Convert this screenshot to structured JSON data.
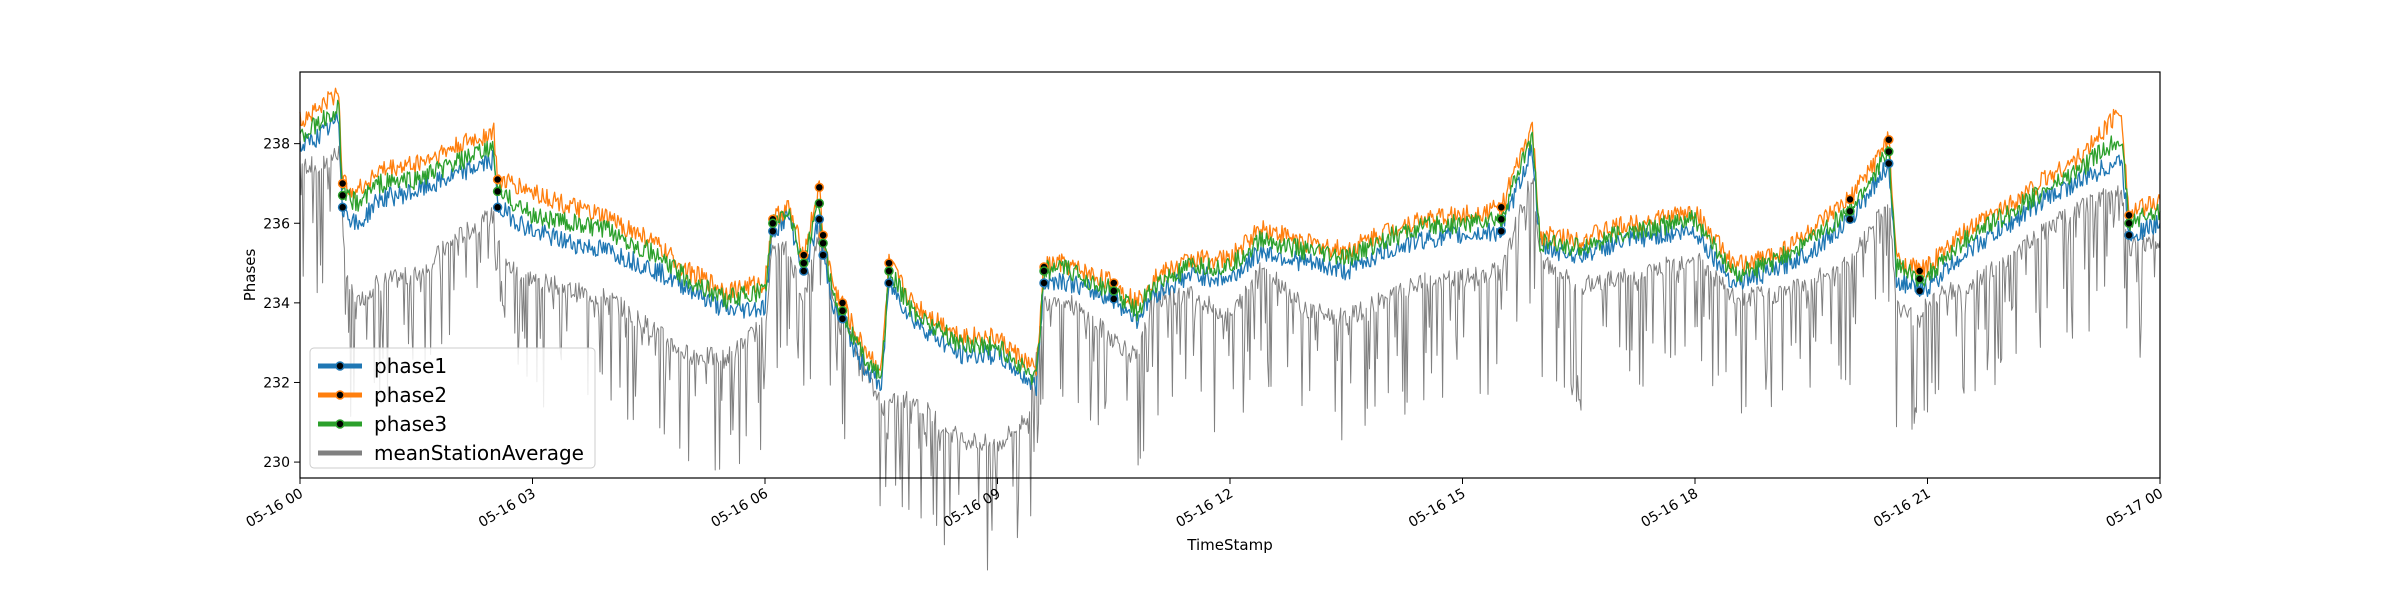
{
  "chart_data": {
    "type": "line",
    "title": "",
    "xlabel": "TimeStamp",
    "ylabel": "Phases",
    "x_ticks": [
      "05-16 00",
      "05-16 03",
      "05-16 06",
      "05-16 09",
      "05-16 12",
      "05-16 15",
      "05-16 18",
      "05-16 21",
      "05-17 00"
    ],
    "x_tick_hours": [
      0,
      3,
      6,
      9,
      12,
      15,
      18,
      21,
      24
    ],
    "xlim_hours": [
      0,
      24
    ],
    "y_ticks": [
      "230",
      "232",
      "234",
      "236",
      "238"
    ],
    "y_tick_values": [
      230,
      232,
      234,
      236,
      238
    ],
    "ylim": [
      229.6,
      239.8
    ],
    "grid": false,
    "legend_position": "lower-left",
    "series": [
      {
        "name": "phase1",
        "color": "#1f77b4",
        "marker": "dot",
        "x_hours": [
          0,
          0.25,
          0.5,
          0.55,
          0.75,
          1,
          1.5,
          2,
          2.5,
          2.55,
          3,
          3.5,
          4,
          4.5,
          5,
          5.5,
          6,
          6.1,
          6.3,
          6.5,
          6.7,
          6.75,
          6.9,
          7,
          7.2,
          7.5,
          7.6,
          7.9,
          8.5,
          9,
          9.5,
          9.6,
          9.8,
          10.5,
          10.8,
          11,
          11.5,
          12,
          12.4,
          13,
          13.5,
          14,
          14.5,
          15,
          15.5,
          15.9,
          16,
          16.5,
          17,
          17.5,
          18,
          18.5,
          19,
          19.5,
          20,
          20.5,
          20.6,
          20.9,
          21,
          21.5,
          22,
          22.5,
          23,
          23.5,
          23.6,
          24
        ],
        "y": [
          237.9,
          238.2,
          238.6,
          236.4,
          235.9,
          236.6,
          236.8,
          237.2,
          237.6,
          236.4,
          235.8,
          235.5,
          235.3,
          234.9,
          234.4,
          233.8,
          233.9,
          235.8,
          236.2,
          234.8,
          236.1,
          235.2,
          233.8,
          233.6,
          232.6,
          231.9,
          234.5,
          233.6,
          232.7,
          232.7,
          231.9,
          234.5,
          234.6,
          234.1,
          233.6,
          234.2,
          234.7,
          234.6,
          235.3,
          235.0,
          234.8,
          235.3,
          235.6,
          235.7,
          235.8,
          237.9,
          235.4,
          235.2,
          235.5,
          235.7,
          235.8,
          234.5,
          234.8,
          235.3,
          236.1,
          237.5,
          234.6,
          234.3,
          234.4,
          235.3,
          235.9,
          236.6,
          237.1,
          237.6,
          235.7,
          236.0
        ]
      },
      {
        "name": "phase2",
        "color": "#ff7f0e",
        "marker": "dot",
        "x_hours": [
          0,
          0.25,
          0.5,
          0.55,
          0.75,
          1,
          1.5,
          2,
          2.5,
          2.55,
          3,
          3.5,
          4,
          4.5,
          5,
          5.5,
          6,
          6.1,
          6.3,
          6.5,
          6.7,
          6.75,
          6.9,
          7,
          7.2,
          7.5,
          7.6,
          7.9,
          8.5,
          9,
          9.5,
          9.6,
          9.8,
          10.5,
          10.8,
          11,
          11.5,
          12,
          12.4,
          13,
          13.5,
          14,
          14.5,
          15,
          15.5,
          15.9,
          16,
          16.5,
          17,
          17.5,
          18,
          18.5,
          19,
          19.5,
          20,
          20.5,
          20.6,
          20.9,
          21,
          21.5,
          22,
          22.5,
          23,
          23.5,
          23.6,
          24
        ],
        "y": [
          238.6,
          238.9,
          239.3,
          237.0,
          236.8,
          237.3,
          237.5,
          237.9,
          238.3,
          237.1,
          236.8,
          236.4,
          236.1,
          235.6,
          234.8,
          234.3,
          234.5,
          236.1,
          236.4,
          235.2,
          236.9,
          235.7,
          234.3,
          234.0,
          233.1,
          232.3,
          235.0,
          234.0,
          233.2,
          233.1,
          232.3,
          234.9,
          235.0,
          234.5,
          234.0,
          234.6,
          235.1,
          235.1,
          235.9,
          235.5,
          235.3,
          235.8,
          236.1,
          236.2,
          236.4,
          238.4,
          235.7,
          235.6,
          235.9,
          236.1,
          236.3,
          234.9,
          235.2,
          235.8,
          236.6,
          238.1,
          235.1,
          234.8,
          234.9,
          235.8,
          236.4,
          237.1,
          237.7,
          238.9,
          236.2,
          236.6
        ]
      },
      {
        "name": "phase3",
        "color": "#2ca02c",
        "marker": "dot",
        "x_hours": [
          0,
          0.25,
          0.5,
          0.55,
          0.75,
          1,
          1.5,
          2,
          2.5,
          2.55,
          3,
          3.5,
          4,
          4.5,
          5,
          5.5,
          6,
          6.1,
          6.3,
          6.5,
          6.7,
          6.75,
          6.9,
          7,
          7.2,
          7.5,
          7.6,
          7.9,
          8.5,
          9,
          9.5,
          9.6,
          9.8,
          10.5,
          10.8,
          11,
          11.5,
          12,
          12.4,
          13,
          13.5,
          14,
          14.5,
          15,
          15.5,
          15.9,
          16,
          16.5,
          17,
          17.5,
          18,
          18.5,
          19,
          19.5,
          20,
          20.5,
          20.6,
          20.9,
          21,
          21.5,
          22,
          22.5,
          23,
          23.5,
          23.6,
          24
        ],
        "y": [
          238.2,
          238.5,
          238.9,
          236.7,
          236.5,
          237.0,
          237.1,
          237.5,
          237.9,
          236.8,
          236.2,
          236.0,
          235.8,
          235.3,
          234.6,
          234.1,
          234.3,
          236.0,
          236.3,
          235.0,
          236.5,
          235.5,
          234.1,
          233.8,
          232.9,
          232.1,
          234.8,
          233.8,
          233.0,
          232.9,
          232.1,
          234.8,
          234.9,
          234.3,
          233.8,
          234.4,
          234.9,
          234.9,
          235.6,
          235.3,
          235.1,
          235.6,
          235.9,
          236.0,
          236.1,
          238.2,
          235.5,
          235.4,
          235.7,
          235.9,
          236.1,
          234.7,
          235.0,
          235.6,
          236.3,
          237.8,
          234.9,
          234.6,
          234.7,
          235.6,
          236.2,
          236.8,
          237.4,
          238.2,
          236.0,
          236.3
        ]
      },
      {
        "name": "meanStationAverage",
        "color": "#808080",
        "marker": "none",
        "x_hours": [
          0,
          0.25,
          0.5,
          0.6,
          0.75,
          1,
          1.5,
          2,
          2.5,
          2.6,
          3,
          3.5,
          4,
          4.5,
          5,
          5.5,
          6,
          6.1,
          6.3,
          6.5,
          6.7,
          6.9,
          7.2,
          7.5,
          7.9,
          8.5,
          9,
          9.4,
          9.6,
          9.8,
          10.5,
          10.8,
          11,
          11.5,
          12,
          12.4,
          13,
          13.5,
          14,
          14.5,
          15,
          15.5,
          15.9,
          16,
          16.5,
          17,
          17.5,
          18,
          18.5,
          19,
          19.5,
          20,
          20.5,
          20.6,
          20.9,
          21,
          21.5,
          22,
          22.5,
          23,
          23.5,
          23.6,
          24
        ],
        "y": [
          237.5,
          237.4,
          237.8,
          234.5,
          234.0,
          234.5,
          234.7,
          235.6,
          236.2,
          235.0,
          234.6,
          234.3,
          234.1,
          233.4,
          232.7,
          232.6,
          233.5,
          235.4,
          235.3,
          234.1,
          235.8,
          234.1,
          232.9,
          231.4,
          231.6,
          230.6,
          230.4,
          231.2,
          234.0,
          234.2,
          233.1,
          232.6,
          234.1,
          234.2,
          233.6,
          235.0,
          233.8,
          233.6,
          234.1,
          234.5,
          234.6,
          234.8,
          237.2,
          235.1,
          234.4,
          234.6,
          234.8,
          235.2,
          234.1,
          234.2,
          234.5,
          235.1,
          236.6,
          233.9,
          233.6,
          234.1,
          234.4,
          235.0,
          235.8,
          236.4,
          236.9,
          235.4,
          235.6
        ]
      }
    ]
  }
}
